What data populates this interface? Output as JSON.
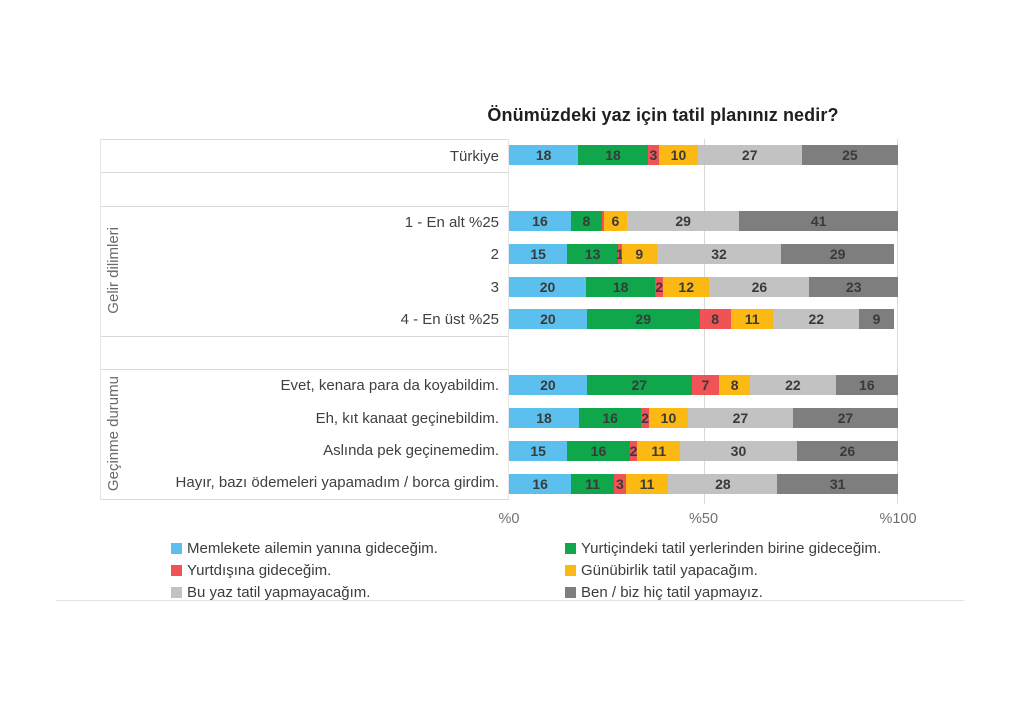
{
  "title": "Önümüzdeki yaz için tatil planınız nedir?",
  "colors": {
    "blue": "#5BC0ED",
    "green": "#0FA64C",
    "red": "#EF5355",
    "yellow": "#FCB813",
    "light_gray": "#C2C2C2",
    "dark_gray": "#7E7E7E",
    "grid": "#D9D9D9",
    "value_text": "#3A3A3A"
  },
  "chart_data": {
    "type": "bar",
    "subtype": "stacked-horizontal-percent",
    "title": "Önümüzdeki yaz için tatil planınız nedir?",
    "xlim": [
      0,
      100
    ],
    "x_ticks": [
      {
        "label": "%0",
        "position": 0
      },
      {
        "label": "%50",
        "position": 50
      },
      {
        "label": "%100",
        "position": 100
      }
    ],
    "grid": "vertical gridlines at 50 and 100",
    "legend_position": "bottom, two columns",
    "series": [
      {
        "name": "Memlekete ailemin yanına gideceğim.",
        "color": "#5BC0ED"
      },
      {
        "name": "Yurtiçindeki tatil yerlerinden birine gideceğim.",
        "color": "#0FA64C"
      },
      {
        "name": "Yurtdışına gideceğim.",
        "color": "#EF5355"
      },
      {
        "name": "Günübirlik tatil yapacağım.",
        "color": "#FCB813"
      },
      {
        "name": "Bu yaz tatil yapmayacağım.",
        "color": "#C2C2C2"
      },
      {
        "name": "Ben / biz hiç tatil yapmayız.",
        "color": "#7E7E7E"
      }
    ],
    "groups": [
      {
        "label": "",
        "rows": [
          {
            "category": "Türkiye",
            "values": [
              18,
              18,
              3,
              10,
              27,
              25
            ],
            "labels": [
              "18",
              "18",
              "3",
              "10",
              "27",
              "25"
            ]
          }
        ]
      },
      {
        "label": "Gelir dilimleri",
        "rows": [
          {
            "category": "1 - En alt %25",
            "values": [
              16,
              8,
              0.5,
              6,
              29,
              41
            ],
            "labels": [
              "16",
              "8",
              "",
              "6",
              "29",
              "41"
            ]
          },
          {
            "category": "2",
            "values": [
              15,
              13,
              1,
              9,
              32,
              29
            ],
            "labels": [
              "15",
              "13",
              "1",
              "9",
              "32",
              "29"
            ]
          },
          {
            "category": "3",
            "values": [
              20,
              18,
              2,
              12,
              26,
              23
            ],
            "labels": [
              "20",
              "18",
              "2",
              "12",
              "26",
              "23"
            ]
          },
          {
            "category": "4 - En üst %25",
            "values": [
              20,
              29,
              8,
              11,
              22,
              9
            ],
            "labels": [
              "20",
              "29",
              "8",
              "11",
              "22",
              "9"
            ]
          }
        ]
      },
      {
        "label": "Geçinme durumu",
        "rows": [
          {
            "category": "Evet, kenara para da koyabildim.",
            "values": [
              20,
              27,
              7,
              8,
              22,
              16
            ],
            "labels": [
              "20",
              "27",
              "7",
              "8",
              "22",
              "16"
            ]
          },
          {
            "category": "Eh, kıt kanaat geçinebildim.",
            "values": [
              18,
              16,
              2,
              10,
              27,
              27
            ],
            "labels": [
              "18",
              "16",
              "2",
              "10",
              "27",
              "27"
            ]
          },
          {
            "category": "Aslında pek geçinemedim.",
            "values": [
              15,
              16,
              2,
              11,
              30,
              26
            ],
            "labels": [
              "15",
              "16",
              "2",
              "11",
              "30",
              "26"
            ]
          },
          {
            "category": "Hayır, bazı ödemeleri yapamadım / borca girdim.",
            "values": [
              16,
              11,
              3,
              11,
              28,
              31
            ],
            "labels": [
              "16",
              "11",
              "3",
              "11",
              "28",
              "31"
            ]
          }
        ]
      }
    ]
  },
  "legend": {
    "items": [
      {
        "label": "Memlekete ailemin yanına gideceğim.",
        "color": "#5BC0ED"
      },
      {
        "label": "Yurtiçindeki tatil yerlerinden birine gideceğim.",
        "color": "#0FA64C"
      },
      {
        "label": "Yurtdışına gideceğim.",
        "color": "#EF5355"
      },
      {
        "label": "Günübirlik tatil yapacağım.",
        "color": "#FCB813"
      },
      {
        "label": "Bu yaz tatil yapmayacağım.",
        "color": "#C2C2C2"
      },
      {
        "label": "Ben / biz hiç tatil yapmayız.",
        "color": "#7E7E7E"
      }
    ]
  }
}
